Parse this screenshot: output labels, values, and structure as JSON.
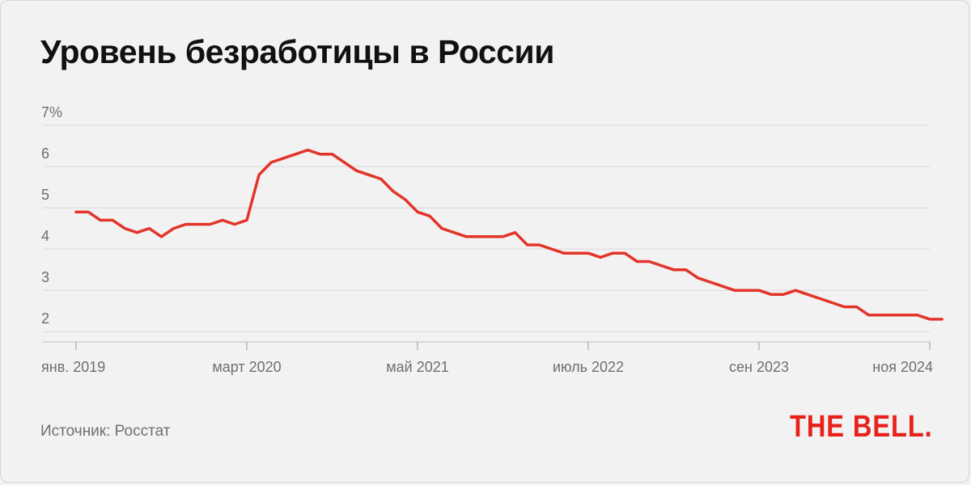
{
  "title": "Уровень безработицы в России",
  "source": "Источник: Росстат",
  "logo_text": "THE BELL.",
  "colors": {
    "line": "#e3342a",
    "grid": "#d9d9d9",
    "axis_text": "#6e6e6e",
    "logo": "#e8221b",
    "background": "#f2f2f2"
  },
  "chart_data": {
    "type": "line",
    "title": "Уровень безработицы в России",
    "ylim": [
      1.75,
      7
    ],
    "y_ticks": [
      {
        "value": 7,
        "label": "7%"
      },
      {
        "value": 6,
        "label": "6"
      },
      {
        "value": 5,
        "label": "5"
      },
      {
        "value": 4,
        "label": "4"
      },
      {
        "value": 3,
        "label": "3"
      },
      {
        "value": 2,
        "label": "2"
      }
    ],
    "x_ticks": [
      {
        "date": "2019-01",
        "label": "янв. 2019"
      },
      {
        "date": "2020-03",
        "label": "март 2020"
      },
      {
        "date": "2021-05",
        "label": "май 2021"
      },
      {
        "date": "2022-07",
        "label": "июль 2022"
      },
      {
        "date": "2023-09",
        "label": "сен 2023"
      },
      {
        "date": "2024-11",
        "label": "ноя 2024"
      }
    ],
    "grid": true,
    "series": [
      {
        "x": [
          "2019-01",
          "2019-02",
          "2019-03",
          "2019-04",
          "2019-05",
          "2019-06",
          "2019-07",
          "2019-08",
          "2019-09",
          "2019-10",
          "2019-11",
          "2019-12",
          "2020-01",
          "2020-02",
          "2020-03",
          "2020-04",
          "2020-05",
          "2020-06",
          "2020-07",
          "2020-08",
          "2020-09",
          "2020-10",
          "2020-11",
          "2020-12",
          "2021-01",
          "2021-02",
          "2021-03",
          "2021-04",
          "2021-05",
          "2021-06",
          "2021-07",
          "2021-08",
          "2021-09",
          "2021-10",
          "2021-11",
          "2021-12",
          "2022-01",
          "2022-02",
          "2022-03",
          "2022-04",
          "2022-05",
          "2022-06",
          "2022-07",
          "2022-08",
          "2022-09",
          "2022-10",
          "2022-11",
          "2022-12",
          "2023-01",
          "2023-02",
          "2023-03",
          "2023-04",
          "2023-05",
          "2023-06",
          "2023-07",
          "2023-08",
          "2023-09",
          "2023-10",
          "2023-11",
          "2023-12",
          "2024-01",
          "2024-02",
          "2024-03",
          "2024-04",
          "2024-05",
          "2024-06",
          "2024-07",
          "2024-08",
          "2024-09",
          "2024-10",
          "2024-11",
          "2024-12"
        ],
        "values": [
          4.9,
          4.9,
          4.7,
          4.7,
          4.5,
          4.4,
          4.5,
          4.3,
          4.5,
          4.6,
          4.6,
          4.6,
          4.7,
          4.6,
          4.7,
          5.8,
          6.1,
          6.2,
          6.3,
          6.4,
          6.3,
          6.3,
          6.1,
          5.9,
          5.8,
          5.7,
          5.4,
          5.2,
          4.9,
          4.8,
          4.5,
          4.4,
          4.3,
          4.3,
          4.3,
          4.3,
          4.4,
          4.1,
          4.1,
          4.0,
          3.9,
          3.9,
          3.9,
          3.8,
          3.9,
          3.9,
          3.7,
          3.7,
          3.6,
          3.5,
          3.5,
          3.3,
          3.2,
          3.1,
          3.0,
          3.0,
          3.0,
          2.9,
          2.9,
          3.0,
          2.9,
          2.8,
          2.7,
          2.6,
          2.6,
          2.4,
          2.4,
          2.4,
          2.4,
          2.4,
          2.3,
          2.3
        ]
      }
    ]
  }
}
